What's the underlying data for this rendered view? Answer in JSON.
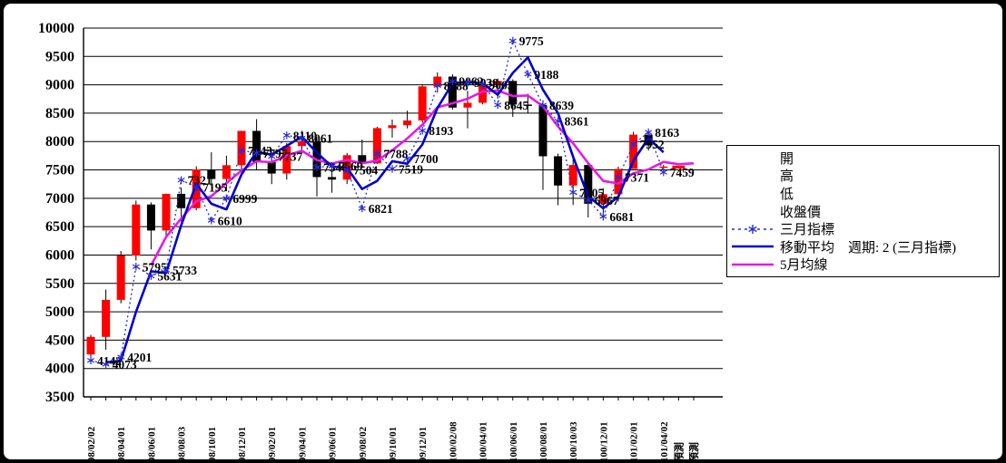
{
  "chart_data": {
    "type": "candlestick",
    "title": "",
    "description": "Monthly OHLC stock chart (Minguo-calendar dates) with 3-month indicator, its 2-period moving average, and 5-month moving average; last two x slots are forecasts",
    "x_tick_labels": [
      "98/02/02",
      "98/04/01",
      "98/06/01",
      "98/08/03",
      "98/10/01",
      "98/12/01",
      "99/02/01",
      "99/04/01",
      "99/06/01",
      "99/08/02",
      "99/10/01",
      "99/12/01",
      "100/02/08",
      "100/04/01",
      "100/06/01",
      "100/08/01",
      "100/10/03",
      "100/12/01",
      "101/02/01",
      "101/04/02",
      "預測",
      "預測"
    ],
    "y_axis": {
      "min": 3500,
      "max": 10000,
      "step": 500
    },
    "slots": 41,
    "grid": true,
    "candles": {
      "up_color": "#FF0000",
      "down_color": "#000000",
      "open": [
        4247,
        4557,
        5210,
        5992,
        6890,
        6432,
        7077,
        6826,
        7509,
        7340,
        7583,
        8188,
        7640,
        7436,
        7920,
        8004,
        7374,
        7329,
        7760,
        7616,
        8237,
        8287,
        8372,
        8972,
        9145,
        8599,
        8683,
        9007,
        9068,
        8652,
        8644,
        7741,
        7225,
        7587,
        6904,
        7072,
        7517,
        8121,
        7550
      ],
      "high": [
        4592,
        5391,
        6071,
        6961,
        6928,
        7084,
        7186,
        7565,
        7811,
        7751,
        8190,
        8395,
        7712,
        7974,
        8190,
        8090,
        7553,
        7800,
        8034,
        8260,
        8386,
        8544,
        8990,
        9220,
        9186,
        8894,
        9099,
        9112,
        9098,
        8842,
        8729,
        7787,
        7743,
        7629,
        7178,
        7559,
        8170,
        8171,
        7590
      ],
      "low": [
        4212,
        4328,
        5148,
        5903,
        6100,
        6301,
        6594,
        6789,
        7233,
        7125,
        7490,
        7505,
        7250,
        7329,
        7800,
        7032,
        7098,
        7251,
        7559,
        7605,
        8070,
        8232,
        8338,
        8860,
        8565,
        8234,
        8656,
        8757,
        8433,
        8494,
        7148,
        6877,
        6883,
        6662,
        6609,
        6941,
        7517,
        7841,
        7520
      ],
      "close": [
        4557,
        5210,
        5992,
        6890,
        6432,
        7077,
        6826,
        7509,
        7340,
        7583,
        8188,
        7640,
        7436,
        7920,
        8004,
        7374,
        7329,
        7760,
        7616,
        8237,
        8287,
        8372,
        8972,
        9145,
        8599,
        8683,
        9007,
        9068,
        8652,
        8644,
        7741,
        7225,
        7587,
        6904,
        7072,
        7517,
        8121,
        7933,
        7560
      ]
    },
    "series": [
      {
        "name": "三月指標",
        "style": "dashed_asterisk",
        "color": "#2B2BD5",
        "point_labels": true,
        "values": [
          4142,
          4073,
          4201,
          5795,
          5631,
          5733,
          7321,
          7195,
          6610,
          6999,
          7843,
          7797,
          7737,
          8110,
          8061,
          7546,
          7569,
          7504,
          6821,
          7788,
          7519,
          7700,
          8193,
          8988,
          9062,
          9038,
          9005,
          8645,
          9775,
          9188,
          8639,
          8361,
          7105,
          6967,
          6681,
          7371,
          7952,
          8163,
          7459
        ]
      },
      {
        "name": "移動平均　週期: 2 (三月指標)",
        "style": "line",
        "color": "#0000D0",
        "point_labels": false,
        "values": [
          null,
          4108,
          4137,
          4998,
          5713,
          5682,
          6527,
          7258,
          6903,
          6805,
          7421,
          7820,
          7767,
          7924,
          8086,
          7804,
          7558,
          7537,
          7163,
          7305,
          7654,
          7610,
          7947,
          8591,
          9025,
          9050,
          9022,
          8825,
          9210,
          9482,
          8914,
          8500,
          7733,
          7036,
          6824,
          7026,
          7662,
          8058,
          7811
        ]
      },
      {
        "name": "5月均線",
        "style": "line",
        "color": "#E619E6",
        "point_labels": false,
        "values": [
          null,
          null,
          null,
          null,
          5816,
          6320,
          6643,
          6947,
          7037,
          7267,
          7489,
          7652,
          7637,
          7753,
          7838,
          7675,
          7613,
          7677,
          7617,
          7663,
          7846,
          8054,
          8297,
          8603,
          8675,
          8754,
          8881,
          8900,
          8802,
          8811,
          8622,
          8266,
          7970,
          7620,
          7306,
          7261,
          7440,
          7509,
          7641,
          7600,
          7615
        ]
      }
    ],
    "forecast_marker": {
      "slot": 39,
      "value": 7550,
      "color": "#FF0000"
    },
    "point_label_color": "#000000"
  },
  "legend": {
    "items": [
      {
        "label": "開",
        "symbol": "none",
        "color": ""
      },
      {
        "label": "高",
        "symbol": "none",
        "color": ""
      },
      {
        "label": "低",
        "symbol": "none",
        "color": ""
      },
      {
        "label": "收盤價",
        "symbol": "none",
        "color": ""
      },
      {
        "label": "三月指標",
        "symbol": "dashed_asterisk",
        "color": "#2B2BD5"
      },
      {
        "label": "移動平均　週期: 2 (三月指標)",
        "symbol": "line",
        "color": "#0000D0"
      },
      {
        "label": "5月均線",
        "symbol": "line",
        "color": "#E619E6"
      }
    ]
  }
}
